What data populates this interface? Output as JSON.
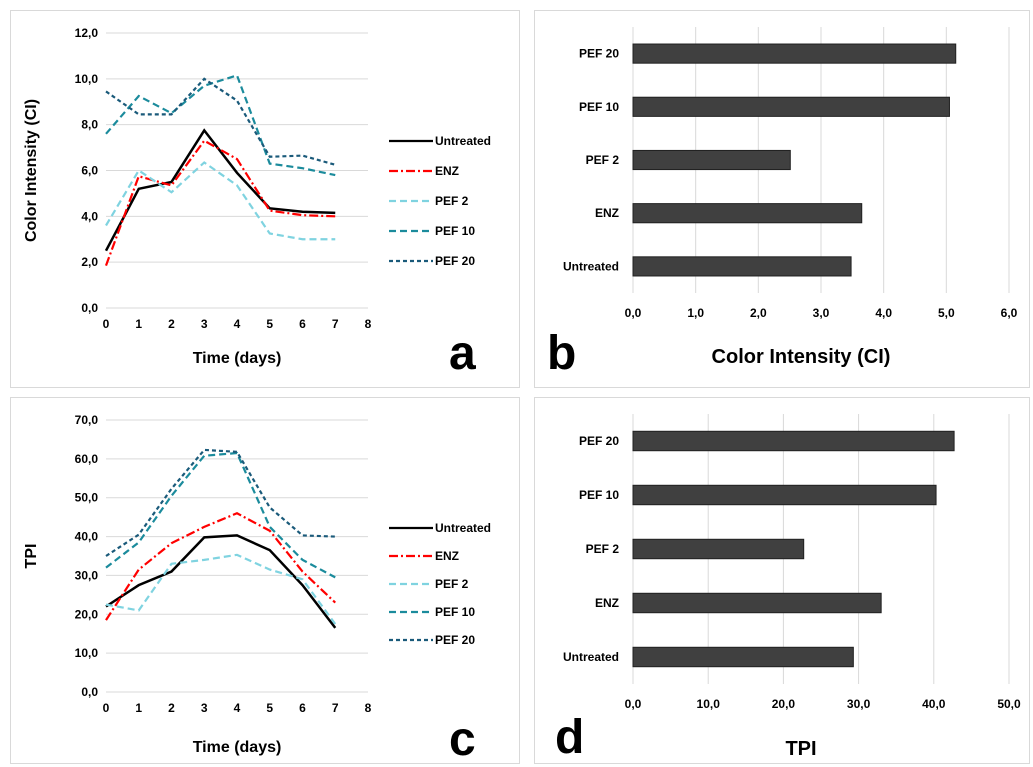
{
  "chart_data": [
    {
      "id": "a",
      "type": "line",
      "panel_letter": "a",
      "xlabel": "Time (days)",
      "ylabel": "Color Intensity (CI)",
      "xlim": [
        0,
        8
      ],
      "ylim": [
        0,
        12
      ],
      "x_ticks": [
        0,
        1,
        2,
        3,
        4,
        5,
        6,
        7,
        8
      ],
      "y_ticks": [
        "0,0",
        "2,0",
        "4,0",
        "6,0",
        "8,0",
        "10,0",
        "12,0"
      ],
      "y_tick_values": [
        0,
        2,
        4,
        6,
        8,
        10,
        12
      ],
      "grid": "horizontal",
      "legend": "right",
      "x": [
        0,
        1,
        2,
        3,
        4,
        5,
        6,
        7
      ],
      "series": [
        {
          "name": "Untreated",
          "color": "#000000",
          "style": "solid",
          "values": [
            2.5,
            5.2,
            5.5,
            7.75,
            5.9,
            4.35,
            4.2,
            4.15
          ]
        },
        {
          "name": "ENZ",
          "color": "#ff0000",
          "style": "dashdot",
          "values": [
            1.85,
            5.75,
            5.35,
            7.3,
            6.5,
            4.25,
            4.05,
            4.0
          ]
        },
        {
          "name": "PEF 2",
          "color": "#7fd3e0",
          "style": "dashed",
          "values": [
            3.6,
            6.0,
            5.05,
            6.35,
            5.35,
            3.25,
            3.0,
            3.0
          ]
        },
        {
          "name": "PEF 10",
          "color": "#1b8b9c",
          "style": "dashed",
          "values": [
            7.6,
            9.25,
            8.5,
            9.7,
            10.15,
            6.3,
            6.1,
            5.8
          ]
        },
        {
          "name": "PEF 20",
          "color": "#1a5a7a",
          "style": "shortdash",
          "values": [
            9.45,
            8.45,
            8.45,
            10.0,
            9.05,
            6.6,
            6.65,
            6.25
          ]
        }
      ]
    },
    {
      "id": "b",
      "type": "bar",
      "orientation": "horizontal",
      "panel_letter": "b",
      "xlabel": "Color Intensity (CI)",
      "xlim": [
        0,
        6
      ],
      "x_ticks": [
        "0,0",
        "1,0",
        "2,0",
        "3,0",
        "4,0",
        "5,0",
        "6,0"
      ],
      "x_tick_values": [
        0,
        1,
        2,
        3,
        4,
        5,
        6
      ],
      "grid": "vertical",
      "color": "#404040",
      "categories": [
        "Untreated",
        "ENZ",
        "PEF 2",
        "PEF 10",
        "PEF 20"
      ],
      "values": [
        3.48,
        3.65,
        2.51,
        5.05,
        5.15
      ]
    },
    {
      "id": "c",
      "type": "line",
      "panel_letter": "c",
      "xlabel": "Time (days)",
      "ylabel": "TPI",
      "xlim": [
        0,
        8
      ],
      "ylim": [
        0,
        70
      ],
      "x_ticks": [
        0,
        1,
        2,
        3,
        4,
        5,
        6,
        7,
        8
      ],
      "y_ticks": [
        "0,0",
        "10,0",
        "20,0",
        "30,0",
        "40,0",
        "50,0",
        "60,0",
        "70,0"
      ],
      "y_tick_values": [
        0,
        10,
        20,
        30,
        40,
        50,
        60,
        70
      ],
      "grid": "horizontal",
      "legend": "right",
      "x": [
        0,
        1,
        2,
        3,
        4,
        5,
        6,
        7
      ],
      "series": [
        {
          "name": "Untreated",
          "color": "#000000",
          "style": "solid",
          "values": [
            22.0,
            27.5,
            31.0,
            39.8,
            40.3,
            36.5,
            27.5,
            16.5
          ]
        },
        {
          "name": "ENZ",
          "color": "#ff0000",
          "style": "dashdot",
          "values": [
            18.5,
            31.5,
            38.3,
            42.5,
            46.0,
            41.5,
            31.0,
            23.0
          ]
        },
        {
          "name": "PEF 2",
          "color": "#7fd3e0",
          "style": "dashed",
          "values": [
            22.5,
            21.0,
            33.0,
            34.0,
            35.3,
            31.5,
            29.0,
            17.5
          ]
        },
        {
          "name": "PEF 10",
          "color": "#1b8b9c",
          "style": "dashed",
          "values": [
            32.0,
            38.5,
            50.5,
            60.8,
            61.5,
            42.5,
            34.0,
            29.5
          ]
        },
        {
          "name": "PEF 20",
          "color": "#1a5a7a",
          "style": "shortdash",
          "values": [
            35.0,
            40.5,
            52.3,
            62.3,
            61.8,
            47.5,
            40.3,
            40.0
          ]
        }
      ]
    },
    {
      "id": "d",
      "type": "bar",
      "orientation": "horizontal",
      "panel_letter": "d",
      "xlabel": "TPI",
      "xlim": [
        0,
        50
      ],
      "x_ticks": [
        "0,0",
        "10,0",
        "20,0",
        "30,0",
        "40,0",
        "50,0"
      ],
      "x_tick_values": [
        0,
        10,
        20,
        30,
        40,
        50
      ],
      "grid": "vertical",
      "color": "#404040",
      "categories": [
        "Untreated",
        "ENZ",
        "PEF 2",
        "PEF 10",
        "PEF 20"
      ],
      "values": [
        29.3,
        33.0,
        22.7,
        40.3,
        42.7
      ]
    }
  ]
}
